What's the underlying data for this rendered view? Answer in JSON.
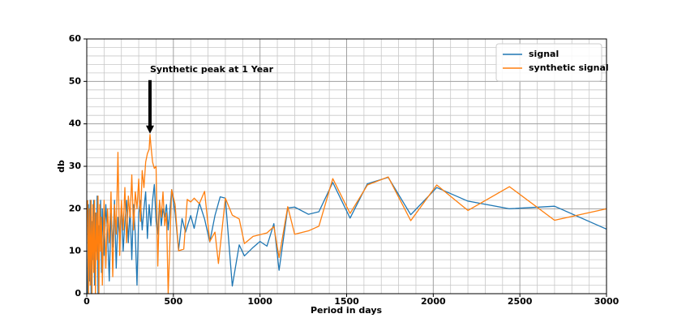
{
  "chart_data": {
    "type": "line",
    "xlabel": "Period in days",
    "ylabel": "db",
    "xlim": [
      0,
      3000
    ],
    "ylim": [
      0,
      60
    ],
    "xticks": [
      0,
      500,
      1000,
      1500,
      2000,
      2500,
      3000
    ],
    "yticks": [
      0,
      10,
      20,
      30,
      40,
      50,
      60
    ],
    "grid": true,
    "minor_grid_divisions": 5,
    "legend": "upper right",
    "annotation": {
      "text": "Synthetic peak at 1 Year",
      "xy": [
        365,
        37.5
      ]
    },
    "series": [
      {
        "name": "signal",
        "color": "#1f77b4",
        "x": [
          5,
          10,
          15,
          20,
          25,
          30,
          35,
          40,
          45,
          50,
          55,
          60,
          65,
          70,
          75,
          80,
          85,
          90,
          100,
          110,
          120,
          130,
          140,
          150,
          160,
          170,
          180,
          190,
          200,
          210,
          220,
          230,
          240,
          250,
          260,
          270,
          280,
          290,
          300,
          310,
          320,
          330,
          340,
          350,
          360,
          370,
          380,
          390,
          400,
          410,
          420,
          430,
          440,
          450,
          460,
          470,
          490,
          510,
          530,
          550,
          570,
          600,
          620,
          650,
          680,
          710,
          740,
          770,
          800,
          840,
          880,
          910,
          960,
          1000,
          1040,
          1080,
          1110,
          1160,
          1200,
          1280,
          1340,
          1420,
          1520,
          1620,
          1740,
          1870,
          2020,
          2200,
          2440,
          2700,
          3000
        ],
        "values": [
          0,
          21,
          3,
          22,
          0,
          17,
          8,
          22,
          2,
          19,
          10,
          23,
          0,
          16,
          12,
          22,
          5,
          20,
          9,
          21,
          14,
          3,
          19,
          11,
          22,
          6,
          18,
          13,
          21,
          10,
          17,
          22,
          12,
          20,
          8,
          21,
          14,
          2,
          19,
          22,
          15,
          20,
          24,
          13,
          21,
          16,
          22,
          25.7,
          17,
          14,
          22,
          16,
          20,
          18,
          21,
          15,
          24.5,
          19,
          10.3,
          17.7,
          14.5,
          18.4,
          15.4,
          21.4,
          17.6,
          12.2,
          18.4,
          22.8,
          22.5,
          1.8,
          11.5,
          8.9,
          10.9,
          12.3,
          11.2,
          16.5,
          5.5,
          20.2,
          20.4,
          18.7,
          19.3,
          26.2,
          17.8,
          25.9,
          27.4,
          18.6,
          25,
          21.8,
          20,
          20.6,
          15.2
        ]
      },
      {
        "name": "synthetic signal",
        "color": "#ff7f0e",
        "x": [
          5,
          10,
          15,
          20,
          25,
          30,
          35,
          40,
          45,
          50,
          55,
          60,
          65,
          70,
          75,
          80,
          85,
          90,
          100,
          110,
          120,
          130,
          140,
          150,
          160,
          170,
          180,
          190,
          200,
          210,
          220,
          230,
          240,
          250,
          260,
          270,
          280,
          290,
          300,
          310,
          320,
          330,
          340,
          350,
          360,
          365,
          370,
          380,
          390,
          400,
          410,
          420,
          430,
          440,
          450,
          460,
          470,
          490,
          510,
          530,
          560,
          580,
          600,
          620,
          650,
          680,
          710,
          740,
          760,
          800,
          840,
          880,
          910,
          960,
          1000,
          1040,
          1080,
          1110,
          1160,
          1200,
          1280,
          1340,
          1420,
          1520,
          1620,
          1740,
          1870,
          2020,
          2200,
          2440,
          2700,
          3000
        ],
        "values": [
          22,
          0,
          20,
          2,
          22,
          0,
          21,
          5,
          22,
          0,
          19,
          8,
          23,
          0,
          21,
          10,
          18,
          2,
          22,
          6,
          20,
          12,
          24,
          4,
          21,
          14,
          33.3,
          9,
          22,
          15,
          25,
          12,
          23,
          18,
          28,
          15,
          24,
          20,
          27,
          17,
          29,
          25,
          31,
          33,
          34,
          37.5,
          35,
          31,
          29.5,
          30,
          6.5,
          22,
          18,
          24,
          16,
          19,
          0,
          24.5,
          21,
          10.1,
          10.5,
          22.2,
          21.6,
          22.5,
          21.2,
          24.1,
          12.3,
          14.5,
          7.1,
          22.5,
          18.5,
          17.6,
          11.8,
          13.5,
          13.9,
          14.3,
          15.8,
          8.5,
          20.5,
          14,
          14.8,
          15.9,
          27.1,
          18.9,
          25.6,
          27.5,
          17.2,
          25.6,
          19.6,
          25.2,
          17.3,
          20
        ]
      }
    ]
  }
}
